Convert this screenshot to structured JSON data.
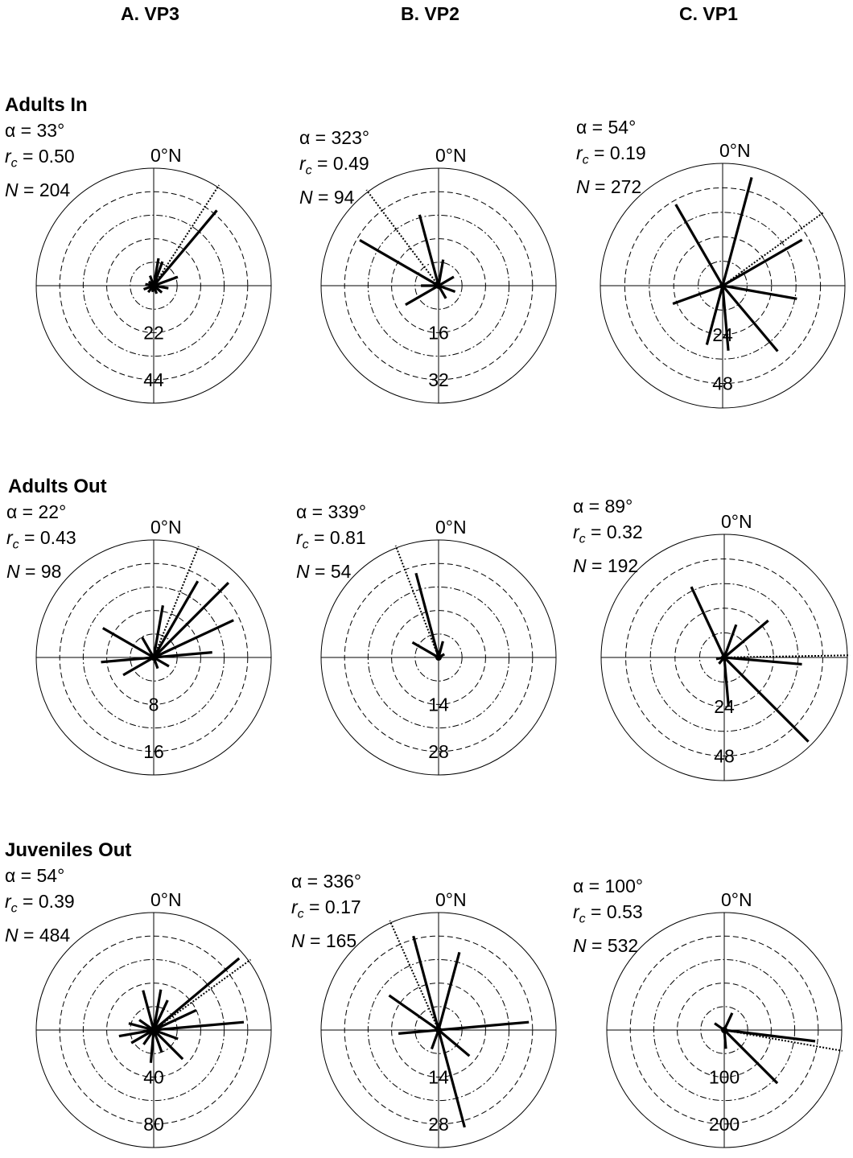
{
  "columns": [
    "A. VP3",
    "B. VP2",
    "C. VP1"
  ],
  "rows": [
    "Adults In",
    "Adults Out",
    "Juveniles Out"
  ],
  "stat_labels": {
    "alpha": "α",
    "rc_r": "r",
    "rc_sub": "c",
    "n": "N",
    "eq": " = "
  },
  "chart_data": [
    {
      "type": "polar",
      "id": "adults-in-vp3",
      "row": "Adults In",
      "column": "A. VP3",
      "north_label": "0°N",
      "alpha": "33°",
      "rc": "0.50",
      "n": "204",
      "rings": [
        "22",
        "44"
      ],
      "r_max": 55,
      "mean_deg": 33,
      "bars": [
        {
          "deg": 10,
          "value": 13
        },
        {
          "deg": 20,
          "value": 12
        },
        {
          "deg": 40,
          "value": 46
        },
        {
          "deg": 70,
          "value": 12
        },
        {
          "deg": 100,
          "value": 7
        },
        {
          "deg": 130,
          "value": 5
        },
        {
          "deg": 160,
          "value": 4
        },
        {
          "deg": 190,
          "value": 3
        },
        {
          "deg": 220,
          "value": 4
        },
        {
          "deg": 250,
          "value": 5
        },
        {
          "deg": 280,
          "value": 4
        },
        {
          "deg": 310,
          "value": 3
        },
        {
          "deg": 340,
          "value": 5
        }
      ]
    },
    {
      "type": "polar",
      "id": "adults-in-vp2",
      "row": "Adults In",
      "column": "B. VP2",
      "north_label": "0°N",
      "alpha": "323°",
      "rc": "0.49",
      "n": "94",
      "rings": [
        "16",
        "32"
      ],
      "r_max": 40,
      "mean_deg": 323,
      "bars": [
        {
          "deg": 345,
          "value": 25
        },
        {
          "deg": 300,
          "value": 31
        },
        {
          "deg": 10,
          "value": 9
        },
        {
          "deg": 60,
          "value": 6
        },
        {
          "deg": 110,
          "value": 6
        },
        {
          "deg": 150,
          "value": 5
        },
        {
          "deg": 240,
          "value": 13
        },
        {
          "deg": 270,
          "value": 6
        }
      ]
    },
    {
      "type": "polar",
      "id": "adults-in-vp1",
      "row": "Adults In",
      "column": "C. VP1",
      "north_label": "0°N",
      "alpha": "54°",
      "rc": "0.19",
      "n": "272",
      "rings": [
        "24",
        "48"
      ],
      "r_max": 60,
      "mean_deg": 54,
      "bars": [
        {
          "deg": 15,
          "value": 55
        },
        {
          "deg": 60,
          "value": 45
        },
        {
          "deg": 100,
          "value": 37
        },
        {
          "deg": 140,
          "value": 42
        },
        {
          "deg": 175,
          "value": 32
        },
        {
          "deg": 195,
          "value": 30
        },
        {
          "deg": 250,
          "value": 26
        },
        {
          "deg": 330,
          "value": 46
        }
      ]
    },
    {
      "type": "polar",
      "id": "adults-out-vp3",
      "row": "Adults Out",
      "column": "A. VP3",
      "north_label": "0°N",
      "alpha": "22°",
      "rc": "0.43",
      "n": "98",
      "rings": [
        "8",
        "16"
      ],
      "r_max": 20,
      "mean_deg": 22,
      "bars": [
        {
          "deg": 10,
          "value": 9
        },
        {
          "deg": 30,
          "value": 15
        },
        {
          "deg": 45,
          "value": 18
        },
        {
          "deg": 65,
          "value": 15
        },
        {
          "deg": 85,
          "value": 10
        },
        {
          "deg": 120,
          "value": 3
        },
        {
          "deg": 160,
          "value": 2
        },
        {
          "deg": 240,
          "value": 6
        },
        {
          "deg": 265,
          "value": 9
        },
        {
          "deg": 300,
          "value": 10
        },
        {
          "deg": 330,
          "value": 4
        }
      ]
    },
    {
      "type": "polar",
      "id": "adults-out-vp2",
      "row": "Adults Out",
      "column": "B. VP2",
      "north_label": "0°N",
      "alpha": "339°",
      "rc": "0.81",
      "n": "54",
      "rings": [
        "14",
        "28"
      ],
      "r_max": 35,
      "mean_deg": 339,
      "bars": [
        {
          "deg": 345,
          "value": 26
        },
        {
          "deg": 300,
          "value": 9
        },
        {
          "deg": 15,
          "value": 5
        },
        {
          "deg": 60,
          "value": 2
        }
      ]
    },
    {
      "type": "polar",
      "id": "adults-out-vp1",
      "row": "Adults Out",
      "column": "C. VP1",
      "north_label": "0°N",
      "alpha": "89°",
      "rc": "0.32",
      "n": "192",
      "rings": [
        "24",
        "48"
      ],
      "r_max": 60,
      "mean_deg": 89,
      "bars": [
        {
          "deg": 20,
          "value": 17
        },
        {
          "deg": 50,
          "value": 28
        },
        {
          "deg": 95,
          "value": 38
        },
        {
          "deg": 135,
          "value": 58
        },
        {
          "deg": 175,
          "value": 24
        },
        {
          "deg": 220,
          "value": 4
        },
        {
          "deg": 260,
          "value": 4
        },
        {
          "deg": 335,
          "value": 38
        }
      ]
    },
    {
      "type": "polar",
      "id": "juveniles-out-vp3",
      "row": "Juveniles Out",
      "column": "A. VP3",
      "north_label": "0°N",
      "alpha": "54°",
      "rc": "0.39",
      "n": "484",
      "rings": [
        "40",
        "80"
      ],
      "r_max": 100,
      "mean_deg": 54,
      "bars": [
        {
          "deg": 10,
          "value": 35
        },
        {
          "deg": 25,
          "value": 28
        },
        {
          "deg": 50,
          "value": 95
        },
        {
          "deg": 65,
          "value": 40
        },
        {
          "deg": 85,
          "value": 77
        },
        {
          "deg": 110,
          "value": 22
        },
        {
          "deg": 135,
          "value": 35
        },
        {
          "deg": 160,
          "value": 20
        },
        {
          "deg": 185,
          "value": 28
        },
        {
          "deg": 215,
          "value": 15
        },
        {
          "deg": 240,
          "value": 22
        },
        {
          "deg": 260,
          "value": 30
        },
        {
          "deg": 285,
          "value": 22
        },
        {
          "deg": 305,
          "value": 15
        },
        {
          "deg": 345,
          "value": 35
        }
      ]
    },
    {
      "type": "polar",
      "id": "juveniles-out-vp2",
      "row": "Juveniles Out",
      "column": "B. VP2",
      "north_label": "0°N",
      "alpha": "336°",
      "rc": "0.17",
      "n": "165",
      "rings": [
        "14",
        "28"
      ],
      "r_max": 35,
      "mean_deg": 336,
      "bars": [
        {
          "deg": 345,
          "value": 29
        },
        {
          "deg": 15,
          "value": 24
        },
        {
          "deg": 85,
          "value": 27
        },
        {
          "deg": 130,
          "value": 12
        },
        {
          "deg": 165,
          "value": 30
        },
        {
          "deg": 200,
          "value": 6
        },
        {
          "deg": 265,
          "value": 12
        },
        {
          "deg": 305,
          "value": 18
        }
      ]
    },
    {
      "type": "polar",
      "id": "juveniles-out-vp1",
      "row": "Juveniles Out",
      "column": "C. VP1",
      "north_label": "0°N",
      "alpha": "100°",
      "rc": "0.53",
      "n": "532",
      "rings": [
        "100",
        "200"
      ],
      "r_max": 250,
      "mean_deg": 100,
      "bars": [
        {
          "deg": 25,
          "value": 40
        },
        {
          "deg": 97,
          "value": 195
        },
        {
          "deg": 135,
          "value": 160
        },
        {
          "deg": 175,
          "value": 40
        },
        {
          "deg": 305,
          "value": 25
        }
      ]
    }
  ]
}
